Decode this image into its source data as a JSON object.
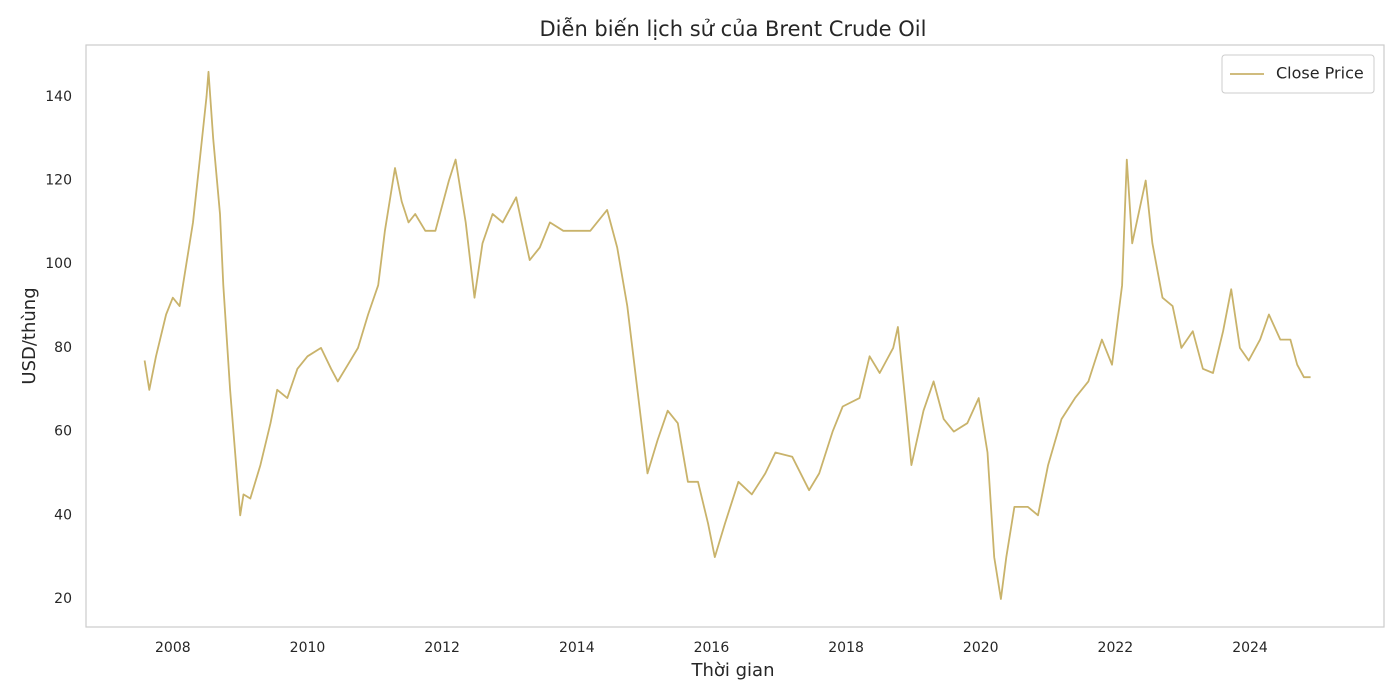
{
  "chart_data": {
    "type": "line",
    "title": "Diễn biến lịch sử của Brent Crude Oil",
    "x_label": "Thời gian",
    "y_label": "USD/thùng",
    "x": [
      2007.58,
      2007.65,
      2007.75,
      2007.9,
      2008.0,
      2008.1,
      2008.2,
      2008.3,
      2008.4,
      2008.5,
      2008.53,
      2008.6,
      2008.7,
      2008.75,
      2008.85,
      2008.95,
      2009.0,
      2009.05,
      2009.15,
      2009.3,
      2009.45,
      2009.55,
      2009.7,
      2009.85,
      2010.0,
      2010.2,
      2010.35,
      2010.45,
      2010.6,
      2010.75,
      2010.9,
      2011.05,
      2011.15,
      2011.3,
      2011.4,
      2011.5,
      2011.6,
      2011.75,
      2011.9,
      2012.1,
      2012.2,
      2012.35,
      2012.48,
      2012.6,
      2012.75,
      2012.9,
      2013.1,
      2013.3,
      2013.45,
      2013.6,
      2013.8,
      2014.0,
      2014.2,
      2014.45,
      2014.6,
      2014.75,
      2014.9,
      2015.05,
      2015.2,
      2015.35,
      2015.5,
      2015.65,
      2015.8,
      2015.95,
      2016.05,
      2016.2,
      2016.4,
      2016.6,
      2016.8,
      2016.95,
      2017.2,
      2017.45,
      2017.6,
      2017.8,
      2017.95,
      2018.2,
      2018.35,
      2018.5,
      2018.7,
      2018.77,
      2018.9,
      2018.97,
      2019.15,
      2019.3,
      2019.45,
      2019.6,
      2019.8,
      2019.97,
      2020.1,
      2020.2,
      2020.3,
      2020.38,
      2020.5,
      2020.7,
      2020.85,
      2021.0,
      2021.2,
      2021.4,
      2021.6,
      2021.8,
      2021.95,
      2022.1,
      2022.17,
      2022.25,
      2022.45,
      2022.55,
      2022.7,
      2022.85,
      2022.98,
      2023.15,
      2023.3,
      2023.45,
      2023.6,
      2023.72,
      2023.85,
      2023.98,
      2024.15,
      2024.28,
      2024.45,
      2024.6,
      2024.7,
      2024.8,
      2024.9
    ],
    "series": [
      {
        "name": "Close Price",
        "color": "#c9b36b",
        "values": [
          77,
          70,
          78,
          88,
          92,
          90,
          100,
          110,
          125,
          140,
          146,
          130,
          112,
          95,
          70,
          50,
          40,
          45,
          44,
          52,
          62,
          70,
          68,
          75,
          78,
          80,
          75,
          72,
          76,
          80,
          88,
          95,
          108,
          123,
          115,
          110,
          112,
          108,
          108,
          120,
          125,
          110,
          92,
          105,
          112,
          110,
          116,
          101,
          104,
          110,
          108,
          108,
          108,
          113,
          104,
          90,
          70,
          50,
          58,
          65,
          62,
          48,
          48,
          38,
          30,
          38,
          48,
          45,
          50,
          55,
          54,
          46,
          50,
          60,
          66,
          68,
          78,
          74,
          80,
          85,
          64,
          52,
          65,
          72,
          63,
          60,
          62,
          68,
          55,
          30,
          20,
          30,
          42,
          42,
          40,
          52,
          63,
          68,
          72,
          82,
          76,
          95,
          125,
          105,
          120,
          105,
          92,
          90,
          80,
          84,
          75,
          74,
          84,
          94,
          80,
          77,
          82,
          88,
          82,
          82,
          76,
          73,
          73
        ]
      }
    ],
    "xlim": [
      2006.71,
      2025.99
    ],
    "xticks": [
      2008,
      2010,
      2012,
      2014,
      2016,
      2018,
      2020,
      2022,
      2024
    ],
    "ylim": [
      13.3,
      152.4
    ],
    "yticks": [
      20,
      40,
      60,
      80,
      100,
      120,
      140
    ],
    "grid": false,
    "legend": "upper right"
  }
}
